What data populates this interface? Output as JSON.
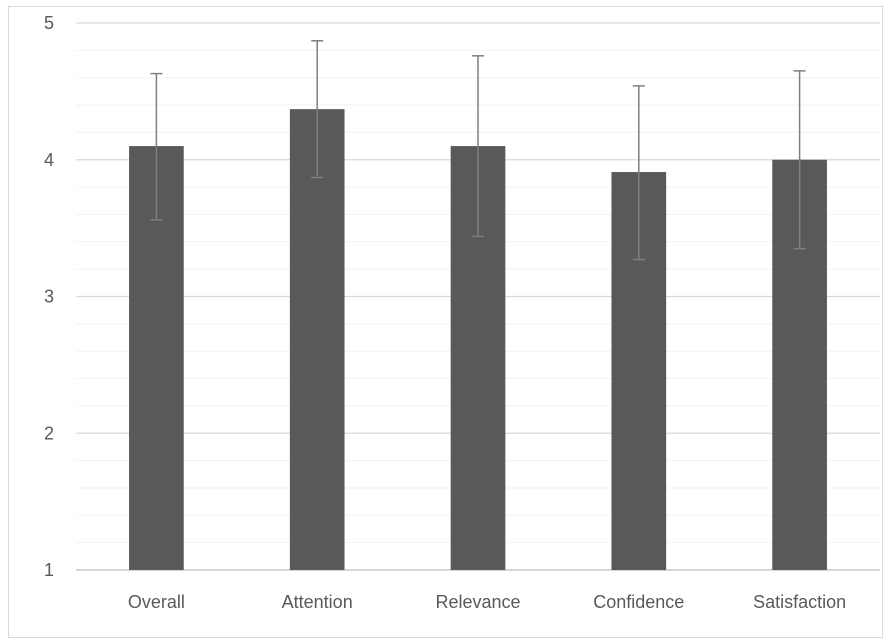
{
  "chart_data": {
    "type": "bar",
    "title": "",
    "xlabel": "",
    "ylabel": "",
    "categories": [
      "Overall",
      "Attention",
      "Relevance",
      "Confidence",
      "Satisfaction"
    ],
    "values": [
      4.1,
      4.37,
      4.1,
      3.91,
      4.0
    ],
    "error_bars": {
      "upper": [
        4.63,
        4.87,
        4.76,
        4.54,
        4.65
      ],
      "lower": [
        3.56,
        3.87,
        3.44,
        3.27,
        3.35
      ]
    },
    "ylim": [
      1,
      5
    ],
    "y_ticks": [
      1,
      2,
      3,
      4,
      5
    ],
    "y_tick_labels": [
      "1",
      "2",
      "3",
      "4",
      "5"
    ],
    "grid": true,
    "minor_grid": true,
    "legend": "none",
    "colors": {
      "bar": "#595959",
      "error_bar": "#7f7f7f",
      "major_grid": "#d9d9d9",
      "minor_grid": "#f2f2f2",
      "axis": "#d9d9d9",
      "text": "#595959"
    }
  }
}
